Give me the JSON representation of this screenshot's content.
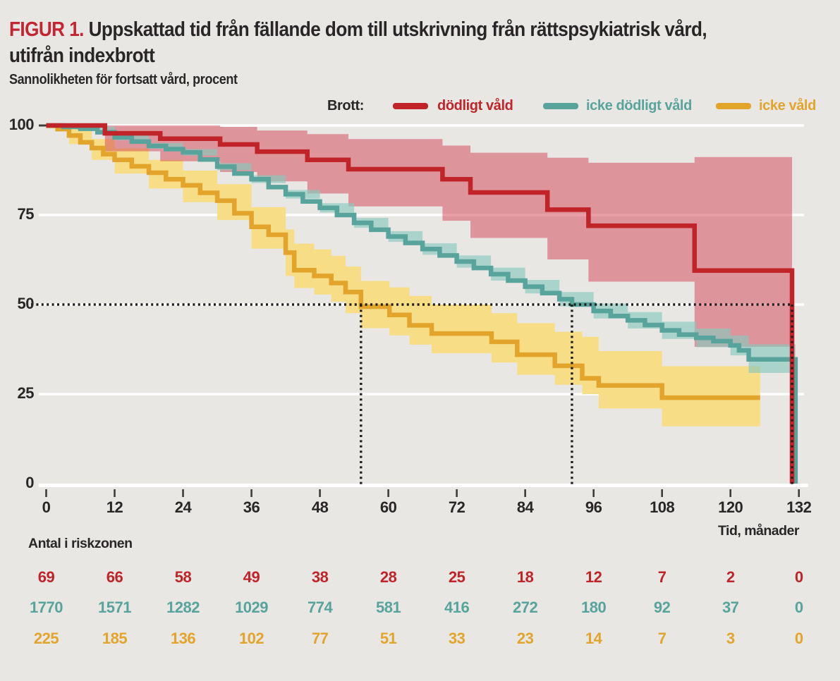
{
  "header": {
    "figure_label": "FIGUR 1.",
    "title_line1": "Uppskattad tid från fällande dom till utskrivning från rättspsykiatrisk vård,",
    "title_line2": "utifrån indexbrott"
  },
  "legend": {
    "label": "Brott:"
  },
  "colors": {
    "background": "#e8e7e4",
    "gridline": "#ffffff",
    "text_dark": "#2a2627",
    "axis_tick": "#3f3d3c",
    "dotted_line": "#1f1f1f",
    "figure_label_red": "#c32532"
  },
  "chart_data": {
    "type": "line",
    "subtype": "kaplan-meier-step",
    "title": "Uppskattad tid från fällande dom till utskrivning från rättspsykiatrisk vård, utifrån indexbrott",
    "ylabel": "Sannolikheten för fortsatt vård, procent",
    "xlabel": "Tid, månader",
    "risk_table_label": "Antal i riskzonen",
    "xlim": [
      0,
      132
    ],
    "ylim": [
      0,
      100
    ],
    "x_ticks": [
      0,
      12,
      24,
      36,
      48,
      60,
      72,
      84,
      96,
      108,
      120,
      132
    ],
    "y_ticks": [
      100,
      75,
      50,
      25,
      0
    ],
    "grid": true,
    "legend_position": "top",
    "median_markers": {
      "y": 50,
      "x": [
        55.2,
        92.2,
        130.8
      ]
    },
    "series": [
      {
        "name": "dödligt våld",
        "color": "#c02429",
        "band_color": "#d44152",
        "band_opacity": 0.5,
        "points": [
          [
            0,
            100
          ],
          [
            10.3,
            97.8
          ],
          [
            20,
            96.3
          ],
          [
            30.5,
            94.7
          ],
          [
            37,
            92.7
          ],
          [
            45.8,
            90.4
          ],
          [
            53,
            87.8
          ],
          [
            69.5,
            85
          ],
          [
            74.4,
            81.3
          ],
          [
            87.9,
            76.5
          ],
          [
            95.1,
            72
          ],
          [
            113.7,
            59.5
          ],
          [
            130.8,
            0
          ]
        ],
        "band": [
          [
            0,
            100,
            100
          ],
          [
            10.3,
            92.8,
            100
          ],
          [
            20,
            90,
            100
          ],
          [
            30.5,
            87,
            99.6
          ],
          [
            37,
            84.4,
            98.6
          ],
          [
            45.8,
            81,
            97.6
          ],
          [
            53,
            77.4,
            96.2
          ],
          [
            69.5,
            73.4,
            94.4
          ],
          [
            74.4,
            68.6,
            92.4
          ],
          [
            87.9,
            62.6,
            91
          ],
          [
            95.1,
            56.4,
            89.6
          ],
          [
            113.7,
            38.2,
            91.2
          ],
          [
            130.8,
            38.2,
            91.2
          ]
        ],
        "n_at_risk": [
          "69",
          "66",
          "58",
          "49",
          "38",
          "28",
          "25",
          "18",
          "12",
          "7",
          "2",
          "0"
        ]
      },
      {
        "name": "icke dödligt våld",
        "color": "#58a49c",
        "band_color": "#87c7bd",
        "band_opacity": 0.65,
        "points": [
          [
            0,
            100
          ],
          [
            3,
            99.6
          ],
          [
            6,
            99.1
          ],
          [
            9,
            98.1
          ],
          [
            12,
            96.7
          ],
          [
            15,
            95.5
          ],
          [
            18,
            94.3
          ],
          [
            21,
            93.4
          ],
          [
            24,
            92.5
          ],
          [
            27,
            90.5
          ],
          [
            30,
            88.5
          ],
          [
            33,
            86.6
          ],
          [
            36,
            85
          ],
          [
            39,
            82.8
          ],
          [
            42,
            80.8
          ],
          [
            45,
            78.8
          ],
          [
            48,
            77
          ],
          [
            51,
            75
          ],
          [
            54,
            72.8
          ],
          [
            57,
            70.9
          ],
          [
            60,
            69
          ],
          [
            63,
            67.2
          ],
          [
            66,
            65.5
          ],
          [
            69,
            63.7
          ],
          [
            72,
            62
          ],
          [
            75,
            60.2
          ],
          [
            78,
            58.5
          ],
          [
            81,
            56.7
          ],
          [
            84,
            55
          ],
          [
            87,
            53.2
          ],
          [
            90,
            51.5
          ],
          [
            92.2,
            50
          ],
          [
            96,
            48.2
          ],
          [
            99,
            46.8
          ],
          [
            102,
            45.6
          ],
          [
            105,
            44.3
          ],
          [
            108,
            42.8
          ],
          [
            111,
            41.6
          ],
          [
            114,
            40.7
          ],
          [
            117,
            39.8
          ],
          [
            120,
            38.6
          ],
          [
            121.5,
            37.2
          ],
          [
            123.2,
            34.7
          ],
          [
            131.4,
            0
          ]
        ],
        "band": [
          [
            0,
            99.6,
            100
          ],
          [
            6,
            98.5,
            99.7
          ],
          [
            12,
            95.9,
            97.5
          ],
          [
            18,
            93.5,
            95.1
          ],
          [
            24,
            91.6,
            93.4
          ],
          [
            30,
            87.5,
            89.5
          ],
          [
            36,
            83.9,
            86.1
          ],
          [
            42,
            79.6,
            82
          ],
          [
            48,
            75.7,
            78.3
          ],
          [
            54,
            71.4,
            74.2
          ],
          [
            60,
            67.5,
            70.5
          ],
          [
            66,
            63.9,
            67.1
          ],
          [
            72,
            60.3,
            63.7
          ],
          [
            78,
            56.7,
            60.3
          ],
          [
            84,
            53.1,
            56.9
          ],
          [
            90,
            49.5,
            53.5
          ],
          [
            96,
            46.1,
            50.3
          ],
          [
            102,
            43.3,
            47.9
          ],
          [
            108,
            40.4,
            45.2
          ],
          [
            114,
            38.1,
            43.3
          ],
          [
            120,
            35.8,
            41.4
          ],
          [
            123.2,
            30.9,
            38.9
          ],
          [
            131.4,
            30.9,
            38.9
          ]
        ],
        "n_at_risk": [
          "1770",
          "1571",
          "1282",
          "1029",
          "774",
          "581",
          "416",
          "272",
          "180",
          "92",
          "37",
          "0"
        ]
      },
      {
        "name": "icke våld",
        "color": "#e3a42c",
        "band_color": "#f6dd86",
        "band_opacity": 1,
        "points": [
          [
            0,
            100
          ],
          [
            2,
            99
          ],
          [
            4,
            97.2
          ],
          [
            6,
            95.3
          ],
          [
            8,
            93.7
          ],
          [
            10,
            92
          ],
          [
            12,
            90.4
          ],
          [
            15,
            88.6
          ],
          [
            18,
            86.8
          ],
          [
            21,
            85
          ],
          [
            24,
            83.3
          ],
          [
            27,
            81.2
          ],
          [
            30,
            79
          ],
          [
            33,
            75.5
          ],
          [
            36,
            71.7
          ],
          [
            39,
            69.5
          ],
          [
            42,
            64.5
          ],
          [
            43.5,
            59.6
          ],
          [
            47,
            58
          ],
          [
            50,
            56
          ],
          [
            52.5,
            53.5
          ],
          [
            55.2,
            49.4
          ],
          [
            60.2,
            47.1
          ],
          [
            63.7,
            44.2
          ],
          [
            67.6,
            41.9
          ],
          [
            78.1,
            39.6
          ],
          [
            82.6,
            36
          ],
          [
            89.2,
            32.9
          ],
          [
            94,
            29.4
          ],
          [
            96.9,
            27.4
          ],
          [
            108,
            24
          ],
          [
            125.2,
            24
          ]
        ],
        "band": [
          [
            0,
            99.2,
            100
          ],
          [
            4,
            94.8,
            99
          ],
          [
            8,
            90.4,
            96.2
          ],
          [
            12,
            86.6,
            93.6
          ],
          [
            18,
            82.4,
            90.4
          ],
          [
            24,
            78.6,
            87.4
          ],
          [
            30,
            73.6,
            83.6
          ],
          [
            36,
            65.6,
            77.2
          ],
          [
            42,
            58,
            71
          ],
          [
            43.5,
            54.6,
            67
          ],
          [
            47,
            52.8,
            65.4
          ],
          [
            50,
            50.8,
            63.6
          ],
          [
            52.5,
            47.6,
            60.6
          ],
          [
            55.2,
            43.4,
            56.6
          ],
          [
            60.2,
            41.4,
            54.8
          ],
          [
            63.7,
            38.8,
            52.4
          ],
          [
            67.6,
            36.4,
            50
          ],
          [
            78.1,
            33.8,
            47.6
          ],
          [
            82.6,
            30.4,
            44.8
          ],
          [
            89.2,
            27.6,
            42.4
          ],
          [
            94,
            25,
            41
          ],
          [
            96.9,
            21,
            37
          ],
          [
            108,
            16,
            32.8
          ],
          [
            125.2,
            16,
            32.8
          ]
        ],
        "n_at_risk": [
          "225",
          "185",
          "136",
          "102",
          "77",
          "51",
          "33",
          "23",
          "14",
          "7",
          "3",
          "0"
        ]
      }
    ]
  }
}
